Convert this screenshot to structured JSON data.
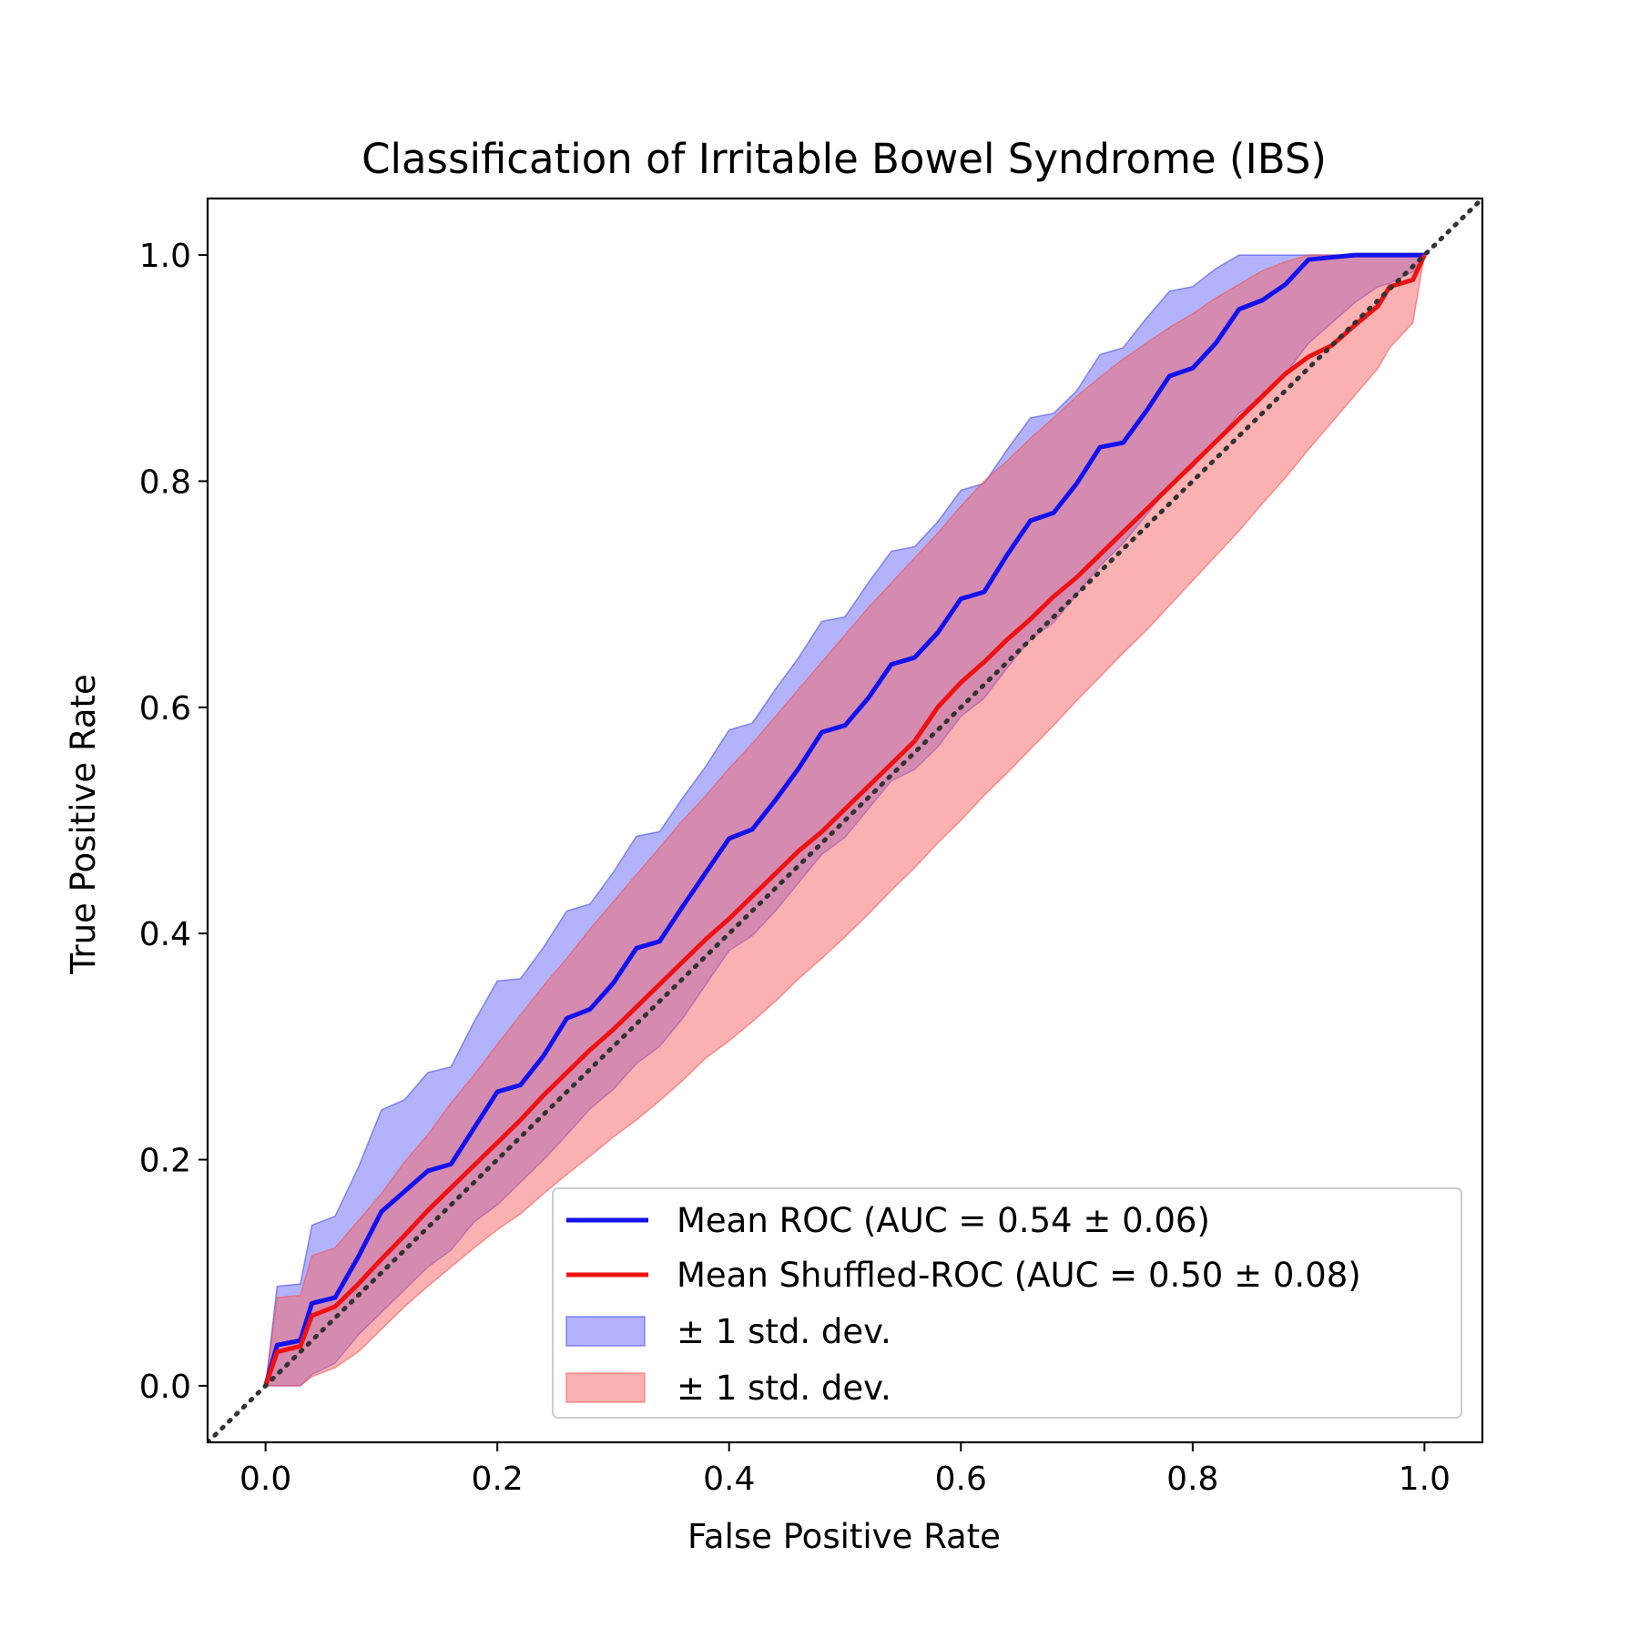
{
  "chart_data": {
    "type": "line",
    "title": "Classification of Irritable Bowel Syndrome (IBS)",
    "xlabel": "False Positive Rate",
    "ylabel": "True Positive Rate",
    "xlim": [
      -0.05,
      1.05
    ],
    "ylim": [
      -0.05,
      1.05
    ],
    "xticks": [
      "0.0",
      "0.2",
      "0.4",
      "0.6",
      "0.8",
      "1.0"
    ],
    "yticks": [
      "0.0",
      "0.2",
      "0.4",
      "0.6",
      "0.8",
      "1.0"
    ],
    "grid": false,
    "legend_position": "lower-right",
    "x": [
      0.0,
      0.01,
      0.03,
      0.04,
      0.06,
      0.08,
      0.1,
      0.12,
      0.14,
      0.16,
      0.18,
      0.2,
      0.22,
      0.24,
      0.26,
      0.28,
      0.3,
      0.32,
      0.34,
      0.36,
      0.38,
      0.4,
      0.42,
      0.44,
      0.46,
      0.48,
      0.5,
      0.52,
      0.54,
      0.56,
      0.58,
      0.6,
      0.62,
      0.64,
      0.66,
      0.68,
      0.7,
      0.72,
      0.74,
      0.76,
      0.78,
      0.8,
      0.82,
      0.84,
      0.86,
      0.88,
      0.9,
      0.92,
      0.94,
      0.96,
      0.97,
      0.99,
      1.0
    ],
    "series": [
      {
        "name": "Mean ROC (AUC = 0.54 ± 0.06)",
        "color": "#1212ee",
        "values": [
          0.0,
          0.036,
          0.04,
          0.073,
          0.078,
          0.114,
          0.154,
          0.172,
          0.19,
          0.196,
          0.228,
          0.26,
          0.266,
          0.292,
          0.325,
          0.333,
          0.356,
          0.387,
          0.393,
          0.424,
          0.454,
          0.484,
          0.492,
          0.518,
          0.546,
          0.578,
          0.584,
          0.608,
          0.638,
          0.644,
          0.666,
          0.696,
          0.702,
          0.735,
          0.765,
          0.772,
          0.798,
          0.83,
          0.834,
          0.862,
          0.893,
          0.9,
          0.922,
          0.952,
          0.96,
          0.974,
          0.996,
          0.998,
          1.0,
          1.0,
          1.0,
          1.0,
          1.0
        ],
        "upper": [
          0.0,
          0.088,
          0.09,
          0.142,
          0.15,
          0.193,
          0.244,
          0.253,
          0.277,
          0.282,
          0.322,
          0.358,
          0.36,
          0.388,
          0.42,
          0.426,
          0.454,
          0.486,
          0.49,
          0.52,
          0.548,
          0.58,
          0.586,
          0.616,
          0.644,
          0.676,
          0.68,
          0.71,
          0.738,
          0.742,
          0.764,
          0.792,
          0.798,
          0.828,
          0.856,
          0.86,
          0.88,
          0.912,
          0.918,
          0.944,
          0.968,
          0.972,
          0.988,
          1.0,
          1.0,
          1.0,
          1.0,
          1.0,
          1.0,
          1.0,
          1.0,
          1.0,
          1.0
        ],
        "lower": [
          0.0,
          0.0,
          0.0,
          0.01,
          0.02,
          0.045,
          0.065,
          0.085,
          0.105,
          0.12,
          0.145,
          0.16,
          0.18,
          0.2,
          0.222,
          0.245,
          0.262,
          0.285,
          0.3,
          0.325,
          0.355,
          0.385,
          0.398,
          0.42,
          0.445,
          0.47,
          0.485,
          0.51,
          0.535,
          0.545,
          0.565,
          0.592,
          0.608,
          0.635,
          0.66,
          0.675,
          0.7,
          0.725,
          0.745,
          0.77,
          0.795,
          0.812,
          0.835,
          0.86,
          0.875,
          0.895,
          0.922,
          0.94,
          0.958,
          0.972,
          0.975,
          0.985,
          1.0
        ]
      },
      {
        "name": "Mean Shuffled-ROC (AUC = 0.50 ± 0.08)",
        "color": "#ee1212",
        "values": [
          0.0,
          0.03,
          0.035,
          0.062,
          0.07,
          0.09,
          0.112,
          0.133,
          0.155,
          0.175,
          0.195,
          0.215,
          0.235,
          0.257,
          0.277,
          0.297,
          0.315,
          0.335,
          0.355,
          0.375,
          0.395,
          0.413,
          0.433,
          0.453,
          0.473,
          0.49,
          0.51,
          0.53,
          0.55,
          0.57,
          0.6,
          0.622,
          0.64,
          0.66,
          0.678,
          0.698,
          0.715,
          0.735,
          0.755,
          0.775,
          0.795,
          0.815,
          0.835,
          0.855,
          0.875,
          0.895,
          0.91,
          0.92,
          0.938,
          0.955,
          0.972,
          0.978,
          1.0
        ],
        "upper": [
          0.0,
          0.078,
          0.08,
          0.115,
          0.122,
          0.146,
          0.17,
          0.198,
          0.222,
          0.25,
          0.275,
          0.302,
          0.328,
          0.354,
          0.378,
          0.404,
          0.428,
          0.452,
          0.476,
          0.5,
          0.522,
          0.546,
          0.568,
          0.592,
          0.616,
          0.64,
          0.664,
          0.688,
          0.71,
          0.732,
          0.754,
          0.778,
          0.8,
          0.818,
          0.838,
          0.856,
          0.875,
          0.892,
          0.908,
          0.922,
          0.936,
          0.948,
          0.962,
          0.974,
          0.986,
          0.994,
          1.0,
          1.0,
          1.0,
          1.0,
          1.0,
          1.0,
          1.0
        ],
        "lower": [
          0.0,
          0.0,
          0.0,
          0.008,
          0.016,
          0.03,
          0.05,
          0.07,
          0.088,
          0.105,
          0.122,
          0.138,
          0.152,
          0.17,
          0.187,
          0.203,
          0.22,
          0.235,
          0.252,
          0.27,
          0.29,
          0.305,
          0.322,
          0.34,
          0.36,
          0.378,
          0.397,
          0.417,
          0.438,
          0.458,
          0.48,
          0.5,
          0.522,
          0.542,
          0.563,
          0.584,
          0.606,
          0.627,
          0.648,
          0.668,
          0.69,
          0.712,
          0.734,
          0.756,
          0.78,
          0.803,
          0.828,
          0.852,
          0.876,
          0.9,
          0.918,
          0.94,
          1.0
        ]
      }
    ],
    "reference_line": {
      "x": [
        -0.05,
        1.05
      ],
      "y": [
        -0.05,
        1.05
      ],
      "color": "#333333",
      "style": "dotted"
    },
    "legend": [
      {
        "label": "Mean ROC (AUC = 0.54 ± 0.06)",
        "kind": "line",
        "color": "#1212ee"
      },
      {
        "label": "Mean Shuffled-ROC (AUC = 0.50 ± 0.08)",
        "kind": "line",
        "color": "#ee1212"
      },
      {
        "label": "± 1 std. dev.",
        "kind": "patch",
        "color": "#4a4af5"
      },
      {
        "label": "± 1 std. dev.",
        "kind": "patch",
        "color": "#f88080"
      }
    ]
  }
}
